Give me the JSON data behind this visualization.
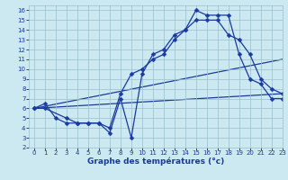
{
  "xlabel": "Graphe des températures (°c)",
  "bg_color": "#cce8f0",
  "line_color": "#1a3a9e",
  "grid_color": "#9abfcc",
  "xlim": [
    -0.5,
    23
  ],
  "ylim": [
    2,
    16.5
  ],
  "xticks": [
    0,
    1,
    2,
    3,
    4,
    5,
    6,
    7,
    8,
    9,
    10,
    11,
    12,
    13,
    14,
    15,
    16,
    17,
    18,
    19,
    20,
    21,
    22,
    23
  ],
  "yticks": [
    2,
    3,
    4,
    5,
    6,
    7,
    8,
    9,
    10,
    11,
    12,
    13,
    14,
    15,
    16
  ],
  "curve1_x": [
    0,
    1,
    2,
    3,
    4,
    5,
    6,
    7,
    8,
    9,
    10,
    11,
    12,
    13,
    14,
    15,
    16,
    17,
    18,
    19,
    20,
    21,
    22,
    23
  ],
  "curve1_y": [
    6.0,
    6.5,
    5.0,
    4.5,
    4.5,
    4.5,
    4.5,
    3.5,
    7.0,
    3.0,
    9.5,
    11.5,
    12.0,
    13.5,
    14.0,
    16.0,
    15.5,
    15.5,
    15.5,
    11.5,
    9.0,
    8.5,
    7.0,
    7.0
  ],
  "curve2_x": [
    0,
    1,
    3,
    4,
    5,
    6,
    7,
    8,
    9,
    10,
    11,
    12,
    13,
    14,
    15,
    16,
    17,
    18,
    19,
    20,
    21,
    22,
    23
  ],
  "curve2_y": [
    6.0,
    6.0,
    5.0,
    4.5,
    4.5,
    4.5,
    4.0,
    7.5,
    9.5,
    10.0,
    11.0,
    11.5,
    13.0,
    14.0,
    15.0,
    15.0,
    15.0,
    13.5,
    13.0,
    11.5,
    9.0,
    8.0,
    7.5
  ],
  "line1_x": [
    0,
    23
  ],
  "line1_y": [
    6.0,
    7.5
  ],
  "line2_x": [
    0,
    23
  ],
  "line2_y": [
    6.0,
    11.0
  ],
  "marker_size": 2.5,
  "tick_fontsize": 5.0,
  "xlabel_fontsize": 6.5
}
